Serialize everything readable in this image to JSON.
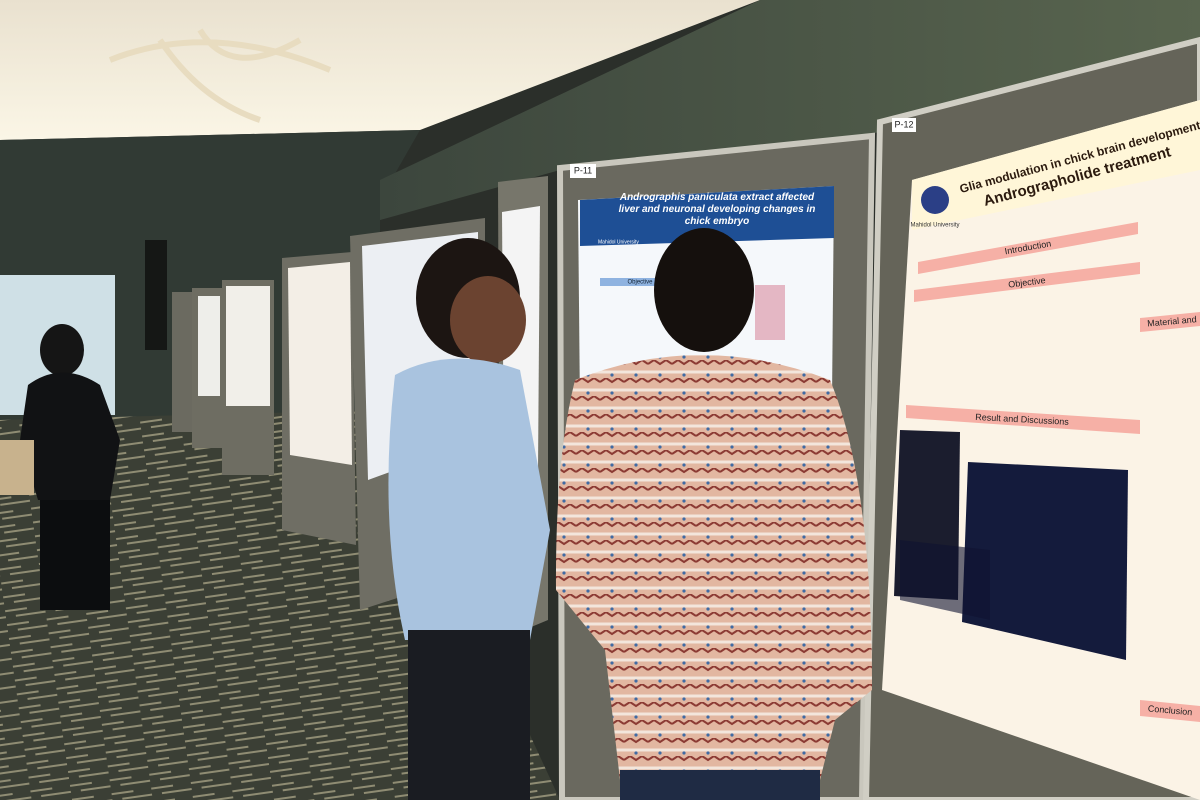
{
  "posters": [
    {
      "number": "P-11",
      "title": "Andrographis paniculata extract affected liver and neuronal developing changes in chick embryo",
      "institution": "Mahidol University",
      "sections": [
        "Objective"
      ]
    },
    {
      "number": "P-12",
      "title_lines": [
        "Glia modulation in chick brain development at",
        "Andrographolide treatment"
      ],
      "institution": "Mahidol University",
      "sections": [
        "Introduction",
        "Objective",
        "Result and Discussions",
        "Conclusion",
        "Material and"
      ]
    }
  ]
}
